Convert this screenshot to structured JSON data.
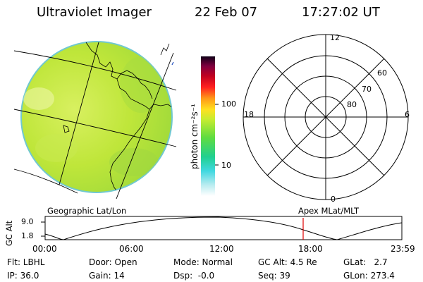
{
  "header": {
    "instrument": "Ultraviolet Imager",
    "date": "22 Feb 07",
    "time": "17:27:02 UT"
  },
  "colorbar": {
    "unit_label": "photon cm⁻²s⁻¹",
    "ticks": [
      "100",
      "10"
    ]
  },
  "polar_plot": {
    "mlt_labels": {
      "top": "12",
      "left": "18",
      "right": "6",
      "bottom": "0"
    },
    "lat_labels": [
      "60",
      "70",
      "80"
    ]
  },
  "panel_labels": {
    "geographic": "Geographic Lat/Lon",
    "apex": "Apex MLat/MLT"
  },
  "alt_plot": {
    "axis_label": "GC Alt",
    "y_ticks": [
      "9.0",
      "1.8"
    ],
    "x_ticks": [
      "00:00",
      "06:00",
      "12:00",
      "18:00",
      "23:59"
    ],
    "marker_color": "#e00000"
  },
  "status": {
    "row1": [
      {
        "text": "Flt: LBHL"
      },
      {
        "text": "Door: Open"
      },
      {
        "text": "Mode: Normal"
      },
      {
        "text": "GC Alt: 4.5 Re"
      },
      {
        "text": "GLat:   2.7"
      }
    ],
    "row2": [
      {
        "text": "IP: 36.0"
      },
      {
        "text": "Gain: 14"
      },
      {
        "text": "Dsp:  -0.0"
      },
      {
        "text": "Seq: 39"
      },
      {
        "text": "GLon: 273.4"
      }
    ]
  }
}
